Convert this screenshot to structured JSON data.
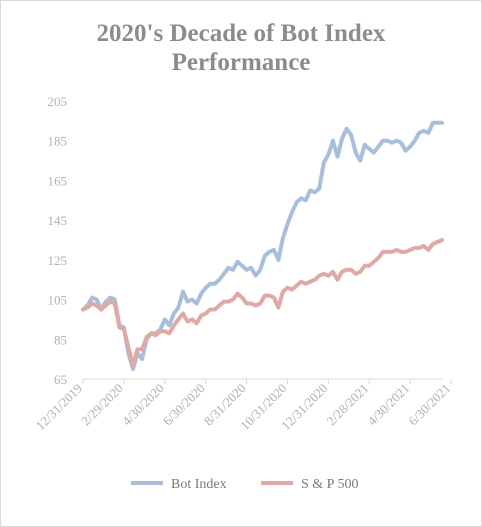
{
  "chart_data": {
    "type": "line",
    "title_line1": "2020's Decade of Bot Index",
    "title_line2": "Performance",
    "xlabel": "",
    "ylabel": "",
    "ylim": [
      65,
      205
    ],
    "yticks": [
      "205",
      "185",
      "165",
      "145",
      "125",
      "105",
      "85",
      "65"
    ],
    "ytick_values": [
      205,
      185,
      165,
      145,
      125,
      105,
      85,
      65
    ],
    "xtick_labels": [
      "12/31/2019",
      "2/29/2020",
      "4/30/2020",
      "6/30/2020",
      "8/31/2020",
      "10/31/2020",
      "12/31/2020",
      "2/28/2021",
      "4/30/2021",
      "6/30/2021"
    ],
    "xtick_positions": [
      0,
      9,
      18,
      27,
      36,
      45,
      54,
      63,
      72,
      81
    ],
    "x_period": "weekly",
    "grid": false,
    "legend_position": "bottom",
    "series": [
      {
        "name": "Bot Index",
        "color": "#a8bfdc",
        "values": [
          100,
          102,
          106,
          105,
          100,
          104,
          106,
          105,
          92,
          91,
          78,
          70,
          78,
          75,
          85,
          88,
          88,
          90,
          95,
          92,
          98,
          101,
          109,
          104,
          105,
          103,
          108,
          111,
          113,
          113,
          115,
          118,
          121,
          120,
          124,
          122,
          120,
          121,
          117,
          120,
          127,
          129,
          130,
          125,
          136,
          143,
          149,
          154,
          156,
          155,
          160,
          159,
          161,
          174,
          178,
          185,
          177,
          186,
          191,
          188,
          179,
          175,
          183,
          181,
          179,
          182,
          185,
          185,
          184,
          185,
          184,
          180,
          182,
          185,
          189,
          190,
          189,
          194,
          194,
          194
        ]
      },
      {
        "name": "S & P 500",
        "color": "#e0a9a5",
        "values": [
          100,
          101,
          103,
          102,
          100,
          102,
          104,
          103,
          91,
          90,
          81,
          72,
          80,
          80,
          86,
          88,
          87,
          89,
          89,
          88,
          92,
          95,
          98,
          94,
          95,
          93,
          97,
          98,
          100,
          100,
          102,
          104,
          104,
          105,
          108,
          106,
          103,
          103,
          102,
          103,
          107,
          107,
          106,
          101,
          109,
          111,
          110,
          112,
          114,
          113,
          114,
          115,
          117,
          118,
          117,
          119,
          115,
          119,
          120,
          120,
          118,
          119,
          122,
          122,
          124,
          126,
          129,
          129,
          129,
          130,
          129,
          129,
          130,
          131,
          131,
          132,
          130,
          133,
          134,
          135
        ]
      }
    ]
  }
}
